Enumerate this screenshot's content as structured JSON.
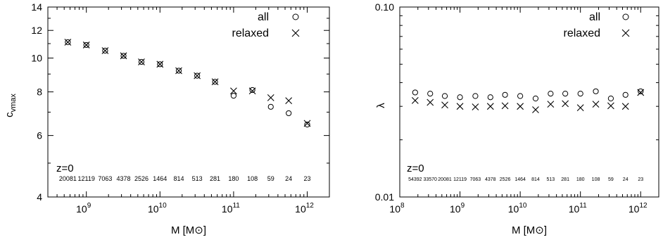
{
  "chart_data": [
    {
      "type": "scatter",
      "xlabel": "M [M⊙]",
      "ylabel": "cvmax",
      "xscale": "log",
      "yscale": "log",
      "xlim": [
        300000000.0,
        2000000000000.0
      ],
      "ylim": [
        4,
        14
      ],
      "yticks": [
        4,
        6,
        8,
        10,
        12,
        14
      ],
      "xticks": [
        1000000000.0,
        10000000000.0,
        100000000000.0,
        1000000000000.0
      ],
      "xtick_labels": [
        [
          "10",
          "9"
        ],
        [
          "10",
          "10"
        ],
        [
          "10",
          "11"
        ],
        [
          "10",
          "12"
        ]
      ],
      "annotation": "z=0",
      "legend_position": "top-right",
      "series": [
        {
          "name": "all",
          "marker": "circle",
          "x": [
            560000000.0,
            1000000000.0,
            1800000000.0,
            3200000000.0,
            5600000000.0,
            10000000000.0,
            18000000000.0,
            32000000000.0,
            56000000000.0,
            100000000000.0,
            180000000000.0,
            320000000000.0,
            560000000000.0,
            1000000000000.0
          ],
          "y": [
            11.1,
            10.9,
            10.5,
            10.15,
            9.75,
            9.6,
            9.2,
            8.9,
            8.55,
            7.8,
            8.1,
            7.25,
            6.95,
            6.45
          ]
        },
        {
          "name": "relaxed",
          "marker": "cross",
          "x": [
            560000000.0,
            1000000000.0,
            1800000000.0,
            3200000000.0,
            5600000000.0,
            10000000000.0,
            18000000000.0,
            32000000000.0,
            56000000000.0,
            100000000000.0,
            180000000000.0,
            320000000000.0,
            560000000000.0,
            1000000000000.0
          ],
          "y": [
            11.1,
            10.9,
            10.5,
            10.15,
            9.75,
            9.6,
            9.2,
            8.9,
            8.55,
            8.05,
            8.05,
            7.7,
            7.55,
            6.5
          ]
        }
      ],
      "counts": [
        "20081",
        "12119",
        "7063",
        "4378",
        "2526",
        "1464",
        "814",
        "513",
        "281",
        "180",
        "108",
        "59",
        "24",
        "23"
      ]
    },
    {
      "type": "scatter",
      "xlabel": "M [M⊙]",
      "ylabel": "λ",
      "xscale": "log",
      "yscale": "log",
      "xlim": [
        100000000.0,
        2000000000000.0
      ],
      "ylim": [
        0.01,
        0.1
      ],
      "yticks": [
        0.01,
        0.1
      ],
      "ytick_labels": [
        "0.01",
        "0.10"
      ],
      "xticks": [
        100000000.0,
        1000000000.0,
        10000000000.0,
        100000000000.0,
        1000000000000.0
      ],
      "xtick_labels": [
        [
          "10",
          "8"
        ],
        [
          "10",
          "9"
        ],
        [
          "10",
          "10"
        ],
        [
          "10",
          "11"
        ],
        [
          "10",
          "12"
        ]
      ],
      "annotation": "z=0",
      "legend_position": "top-right",
      "series": [
        {
          "name": "all",
          "marker": "circle",
          "x": [
            180000000.0,
            320000000.0,
            560000000.0,
            1000000000.0,
            1800000000.0,
            3200000000.0,
            5600000000.0,
            10000000000.0,
            18000000000.0,
            32000000000.0,
            56000000000.0,
            100000000000.0,
            180000000000.0,
            320000000000.0,
            560000000000.0,
            1000000000000.0
          ],
          "y": [
            0.0355,
            0.035,
            0.034,
            0.0335,
            0.034,
            0.0335,
            0.0345,
            0.034,
            0.033,
            0.035,
            0.035,
            0.035,
            0.036,
            0.033,
            0.0345,
            0.036
          ]
        },
        {
          "name": "relaxed",
          "marker": "cross",
          "x": [
            180000000.0,
            320000000.0,
            560000000.0,
            1000000000.0,
            1800000000.0,
            3200000000.0,
            5600000000.0,
            10000000000.0,
            18000000000.0,
            32000000000.0,
            56000000000.0,
            100000000000.0,
            180000000000.0,
            320000000000.0,
            560000000000.0,
            1000000000000.0
          ],
          "y": [
            0.0322,
            0.0315,
            0.0305,
            0.03,
            0.0298,
            0.03,
            0.0302,
            0.03,
            0.0288,
            0.0308,
            0.031,
            0.0295,
            0.0308,
            0.0302,
            0.03,
            0.0355
          ]
        }
      ],
      "counts": [
        "54392",
        "33570",
        "20081",
        "12119",
        "7063",
        "4378",
        "2526",
        "1464",
        "814",
        "513",
        "281",
        "180",
        "108",
        "59",
        "24",
        "23"
      ]
    }
  ]
}
